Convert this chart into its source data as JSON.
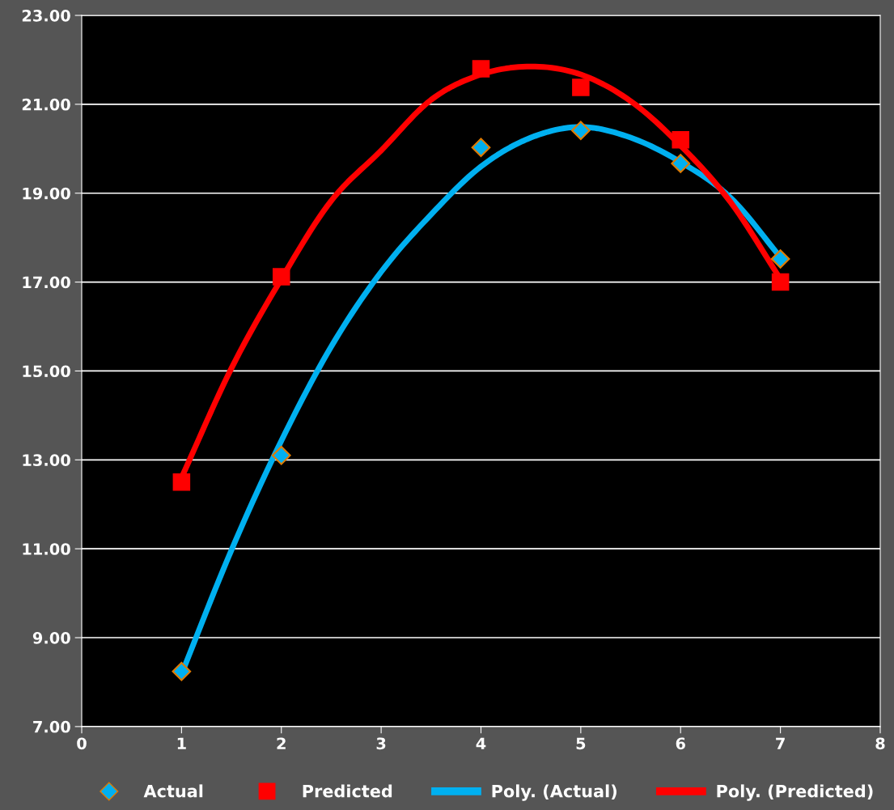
{
  "chart_data": {
    "type": "scatter",
    "xlim": [
      0,
      8
    ],
    "xticks": [
      0,
      1,
      2,
      3,
      4,
      5,
      6,
      7,
      8
    ],
    "ylim": [
      7,
      23
    ],
    "yticks": [
      {
        "value": 7,
        "label": "7.00"
      },
      {
        "value": 9,
        "label": "9.00"
      },
      {
        "value": 11,
        "label": "11.00"
      },
      {
        "value": 13,
        "label": "13.00"
      },
      {
        "value": 15,
        "label": "15.00"
      },
      {
        "value": 17,
        "label": "17.00"
      },
      {
        "value": 19,
        "label": "19.00"
      },
      {
        "value": 21,
        "label": "21.00"
      },
      {
        "value": 23,
        "label": "23.00"
      }
    ],
    "grid": "y",
    "legend": "bottom",
    "series": [
      {
        "name": "Actual",
        "marker": "diamond",
        "color": "#00b0f0",
        "x": [
          1,
          2,
          4,
          5,
          6,
          7
        ],
        "values": [
          8.24,
          13.1,
          20.03,
          20.41,
          19.67,
          17.52
        ]
      },
      {
        "name": "Predicted",
        "marker": "square",
        "color": "#ff0000",
        "x": [
          1,
          2,
          4,
          5,
          6,
          7
        ],
        "values": [
          12.5,
          17.12,
          21.8,
          21.38,
          20.2,
          17.0
        ]
      },
      {
        "name": "Poly. (Actual)",
        "type": "line",
        "color": "#00b0f0",
        "x": [
          1,
          1.5,
          2,
          2.5,
          3,
          3.5,
          4,
          4.5,
          5,
          5.5,
          6,
          6.5,
          7
        ],
        "values": [
          8.18,
          10.97,
          13.43,
          15.55,
          17.23,
          18.52,
          19.6,
          20.25,
          20.49,
          20.25,
          19.7,
          18.9,
          17.56
        ]
      },
      {
        "name": "Poly. (Predicted)",
        "type": "line",
        "color": "#ff0000",
        "x": [
          1,
          1.5,
          2,
          2.5,
          3,
          3.5,
          4,
          4.5,
          5,
          5.5,
          6,
          6.5,
          7
        ],
        "values": [
          12.6,
          15.06,
          17.07,
          18.83,
          19.96,
          21.1,
          21.67,
          21.85,
          21.67,
          21.07,
          20.07,
          18.8,
          17.07
        ]
      }
    ]
  }
}
